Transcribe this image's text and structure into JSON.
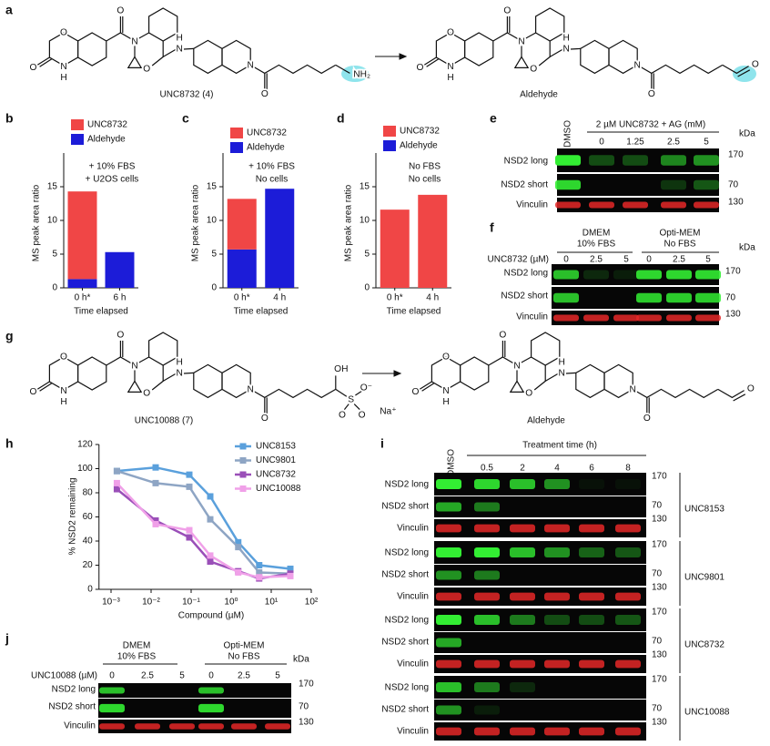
{
  "figure": {
    "labels": [
      "a",
      "b",
      "c",
      "d",
      "e",
      "f",
      "g",
      "h",
      "i",
      "j"
    ],
    "structures": [
      {
        "name": "UNC8732 (4)",
        "atoms": [
          "O",
          "O",
          "N",
          "H",
          "O",
          "N",
          "O",
          "N",
          "H",
          "N",
          "O",
          "NH₂"
        ]
      },
      {
        "name": "Aldehyde",
        "atoms": [
          "O",
          "O",
          "N",
          "H",
          "O",
          "N",
          "O",
          "N",
          "H",
          "N",
          "O",
          "O"
        ]
      },
      {
        "name": "UNC10088 (7)",
        "atoms": [
          "O",
          "O",
          "N",
          "H",
          "O",
          "N",
          "O",
          "N",
          "H",
          "N",
          "O",
          "OH",
          "S",
          "O",
          "O",
          "O⁻",
          "Na⁺"
        ]
      },
      {
        "name": "Aldehyde",
        "atoms": [
          "O",
          "O",
          "N",
          "H",
          "O",
          "N",
          "O",
          "N",
          "H",
          "N",
          "O",
          "O"
        ]
      }
    ],
    "blots": {
      "e": {
        "header": "2 µM UNC8732 + AG (mM)",
        "lanes": [
          "DMSO",
          "0",
          "1.25",
          "2.5",
          "5"
        ],
        "rows": [
          "NSD2 long",
          "NSD2 short",
          "Vinculin"
        ],
        "markers": [
          "170",
          "70",
          "130"
        ],
        "unit": "kDa"
      },
      "f": {
        "groups": [
          [
            "DMEM",
            "10% FBS"
          ],
          [
            "Opti-MEM",
            "No FBS"
          ]
        ],
        "dose_label": "UNC8732 (µM)",
        "lanes": [
          "0",
          "2.5",
          "5",
          "0",
          "2.5",
          "5"
        ],
        "rows": [
          "NSD2 long",
          "NSD2 short",
          "Vinculin"
        ],
        "markers": [
          "170",
          "70",
          "130"
        ],
        "unit": "kDa"
      },
      "i": {
        "header": "Treatment time (h)",
        "lanes": [
          "DMSO",
          "0.5",
          "2",
          "4",
          "6",
          "8"
        ],
        "blocks": [
          {
            "compound": "UNC8153",
            "rows": [
              "NSD2 long",
              "NSD2 short",
              "Vinculin"
            ],
            "markers": [
              "170",
              "70",
              "130"
            ]
          },
          {
            "compound": "UNC9801",
            "rows": [
              "NSD2 long",
              "NSD2 short",
              "Vinculin"
            ],
            "markers": [
              "170",
              "70",
              "130"
            ]
          },
          {
            "compound": "UNC8732",
            "rows": [
              "NSD2 long",
              "NSD2 short",
              "Vinculin"
            ],
            "markers": [
              "170",
              "70",
              "130"
            ]
          },
          {
            "compound": "UNC10088",
            "rows": [
              "NSD2 long",
              "NSD2 short",
              "Vinculin"
            ],
            "markers": [
              "170",
              "70",
              "130"
            ]
          }
        ]
      },
      "j": {
        "groups": [
          [
            "DMEM",
            "10% FBS"
          ],
          [
            "Opti-MEM",
            "No FBS"
          ]
        ],
        "dose_label": "UNC10088 (µM)",
        "lanes": [
          "0",
          "2.5",
          "5",
          "0",
          "2.5",
          "5"
        ],
        "rows": [
          "NSD2 long",
          "NSD2 short",
          "Vinculin"
        ],
        "markers": [
          "170",
          "70",
          "130"
        ],
        "unit": "kDa"
      }
    }
  },
  "chart_data": [
    {
      "type": "bar",
      "stacked": true,
      "ylabel": "MS peak area ratio",
      "xlabel": "Time elapsed",
      "annotations": [
        "+ 10% FBS",
        "+ U2OS cells"
      ],
      "categories": [
        "0 h*",
        "6 h"
      ],
      "series": [
        {
          "name": "UNC8732",
          "color": "#f04646",
          "values": [
            13,
            0
          ]
        },
        {
          "name": "Aldehyde",
          "color": "#1c1cd8",
          "values": [
            1.3,
            5.3
          ]
        }
      ],
      "ylim": [
        0,
        20
      ],
      "yticks": [
        0,
        5,
        10,
        15
      ]
    },
    {
      "type": "bar",
      "stacked": true,
      "ylabel": "MS peak area ratio",
      "xlabel": "Time elapsed",
      "annotations": [
        "+ 10% FBS",
        "No cells"
      ],
      "categories": [
        "0 h*",
        "4 h"
      ],
      "series": [
        {
          "name": "UNC8732",
          "color": "#f04646",
          "values": [
            7.5,
            0
          ]
        },
        {
          "name": "Aldehyde",
          "color": "#1c1cd8",
          "values": [
            5.7,
            14.7
          ]
        }
      ],
      "ylim": [
        0,
        20
      ],
      "yticks": [
        0,
        5,
        10,
        15
      ]
    },
    {
      "type": "bar",
      "stacked": true,
      "ylabel": "MS peak area ratio",
      "xlabel": "Time elapsed",
      "annotations": [
        "No FBS",
        "No cells"
      ],
      "categories": [
        "0 h*",
        "4 h"
      ],
      "series": [
        {
          "name": "UNC8732",
          "color": "#f04646",
          "values": [
            11.6,
            13.8
          ]
        },
        {
          "name": "Aldehyde",
          "color": "#1c1cd8",
          "values": [
            0,
            0
          ]
        }
      ],
      "ylim": [
        0,
        20
      ],
      "yticks": [
        0,
        5,
        10,
        15
      ]
    },
    {
      "type": "line",
      "log_x": true,
      "xlabel": "Compound (µM)",
      "ylabel": "% NSD2 remaining",
      "x": [
        0.0014,
        0.013,
        0.09,
        0.3,
        1.5,
        5,
        30
      ],
      "series": [
        {
          "name": "UNC8153",
          "color": "#5aa0dc",
          "values": [
            98,
            101,
            95,
            77,
            39,
            20,
            17
          ]
        },
        {
          "name": "UNC9801",
          "color": "#8ea5c4",
          "values": [
            98,
            88,
            85,
            58,
            35,
            14,
            13
          ]
        },
        {
          "name": "UNC8732",
          "color": "#9a4fb8",
          "values": [
            83,
            57,
            43,
            23,
            15,
            9,
            13
          ]
        },
        {
          "name": "UNC10088",
          "color": "#f0a0e8",
          "values": [
            88,
            54,
            49,
            28,
            14,
            10,
            11
          ]
        }
      ],
      "xlim": [
        0.0005,
        100
      ],
      "xticks": [
        {
          "value": 0.001,
          "label": "10⁻³"
        },
        {
          "value": 0.01,
          "label": "10⁻²"
        },
        {
          "value": 0.1,
          "label": "10⁻¹"
        },
        {
          "value": 1,
          "label": "10⁰"
        },
        {
          "value": 10,
          "label": "10¹"
        },
        {
          "value": 100,
          "label": "10²"
        }
      ],
      "ylim": [
        0,
        120
      ],
      "yticks": [
        0,
        20,
        40,
        60,
        80,
        100,
        120
      ]
    }
  ]
}
